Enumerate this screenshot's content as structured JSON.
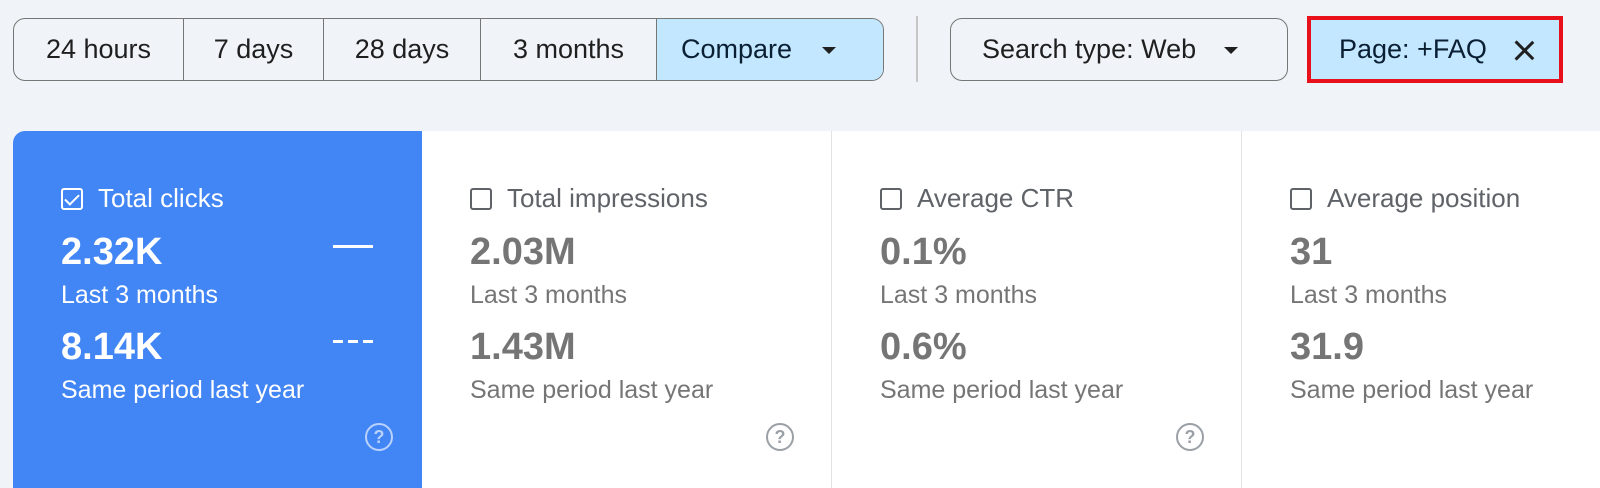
{
  "date_range": {
    "options": [
      "24 hours",
      "7 days",
      "28 days",
      "3 months"
    ],
    "compare_label": "Compare"
  },
  "search_type": {
    "label": "Search type: Web"
  },
  "page_filter": {
    "label": "Page: +FAQ"
  },
  "icons": {
    "dropdown": "chevron-down-icon",
    "close": "close-icon",
    "help": "help-circle-icon",
    "checkbox": "checkbox-icon"
  },
  "colors": {
    "selected_card": "#4285f4",
    "chip_selected": "#c2e7ff",
    "highlight_border": "#e8101a"
  },
  "metrics": [
    {
      "title": "Total clicks",
      "checked": true,
      "current_value": "2.32K",
      "current_period": "Last 3 months",
      "previous_value": "8.14K",
      "previous_period": "Same period last year",
      "help": "?"
    },
    {
      "title": "Total impressions",
      "checked": false,
      "current_value": "2.03M",
      "current_period": "Last 3 months",
      "previous_value": "1.43M",
      "previous_period": "Same period last year",
      "help": "?"
    },
    {
      "title": "Average CTR",
      "checked": false,
      "current_value": "0.1%",
      "current_period": "Last 3 months",
      "previous_value": "0.6%",
      "previous_period": "Same period last year",
      "help": "?"
    },
    {
      "title": "Average position",
      "checked": false,
      "current_value": "31",
      "current_period": "Last 3 months",
      "previous_value": "31.9",
      "previous_period": "Same period last year"
    }
  ]
}
